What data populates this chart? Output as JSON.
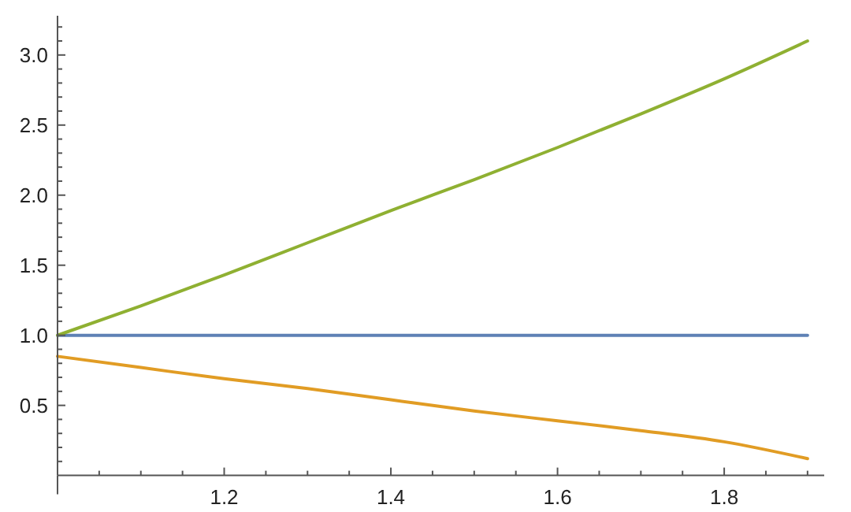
{
  "chart_data": {
    "type": "line",
    "xlim": [
      1,
      1.92
    ],
    "ylim": [
      0,
      3.28
    ],
    "xticks": [
      {
        "value": 1.05,
        "label": null
      },
      {
        "value": 1.1,
        "label": null
      },
      {
        "value": 1.15,
        "label": null
      },
      1.2,
      {
        "value": 1.25,
        "label": null
      },
      {
        "value": 1.3,
        "label": null
      },
      {
        "value": 1.35,
        "label": null
      },
      1.4,
      {
        "value": 1.45,
        "label": null
      },
      {
        "value": 1.5,
        "label": null
      },
      {
        "value": 1.55,
        "label": null
      },
      1.6,
      {
        "value": 1.65,
        "label": null
      },
      {
        "value": 1.7,
        "label": null
      },
      {
        "value": 1.75,
        "label": null
      },
      1.8,
      {
        "value": 1.85,
        "label": null
      },
      {
        "value": 1.9,
        "label": null
      }
    ],
    "yticks": [
      {
        "value": 0.1,
        "label": null
      },
      {
        "value": 0.2,
        "label": null
      },
      {
        "value": 0.3,
        "label": null
      },
      {
        "value": 0.4,
        "label": null
      },
      0.5,
      {
        "value": 0.6,
        "label": null
      },
      {
        "value": 0.7,
        "label": null
      },
      {
        "value": 0.8,
        "label": null
      },
      {
        "value": 0.9,
        "label": null
      },
      {
        "value": 1,
        "label": "1.0"
      },
      {
        "value": 1.1,
        "label": null
      },
      {
        "value": 1.2,
        "label": null
      },
      {
        "value": 1.3,
        "label": null
      },
      {
        "value": 1.4,
        "label": null
      },
      1.5,
      {
        "value": 1.6,
        "label": null
      },
      {
        "value": 1.7,
        "label": null
      },
      {
        "value": 1.8,
        "label": null
      },
      {
        "value": 1.9,
        "label": null
      },
      {
        "value": 2,
        "label": "2.0"
      },
      {
        "value": 2.1,
        "label": null
      },
      {
        "value": 2.2,
        "label": null
      },
      {
        "value": 2.3,
        "label": null
      },
      {
        "value": 2.4,
        "label": null
      },
      2.5,
      {
        "value": 2.6,
        "label": null
      },
      {
        "value": 2.7,
        "label": null
      },
      {
        "value": 2.8,
        "label": null
      },
      {
        "value": 2.9,
        "label": null
      },
      {
        "value": 3,
        "label": "3.0"
      },
      {
        "value": 3.1,
        "label": null
      },
      {
        "value": 3.2,
        "label": null
      }
    ],
    "x": [
      1,
      1.1,
      1.2,
      1.3,
      1.4,
      1.5,
      1.6,
      1.7,
      1.8,
      1.9
    ],
    "series": [
      {
        "color": "#5e81b5",
        "values": [
          1,
          1,
          1,
          1,
          1,
          1,
          1,
          1,
          1,
          1
        ]
      },
      {
        "color": "#e19c24",
        "values": [
          0.85,
          0.77,
          0.69,
          0.62,
          0.54,
          0.46,
          0.39,
          0.32,
          0.24,
          0.12
        ]
      },
      {
        "color": "#8fb032",
        "values": [
          1,
          1.21,
          1.43,
          1.66,
          1.89,
          2.11,
          2.34,
          2.58,
          2.83,
          3.1
        ]
      }
    ],
    "grid": false,
    "marker": "none",
    "line_style": "solid"
  }
}
